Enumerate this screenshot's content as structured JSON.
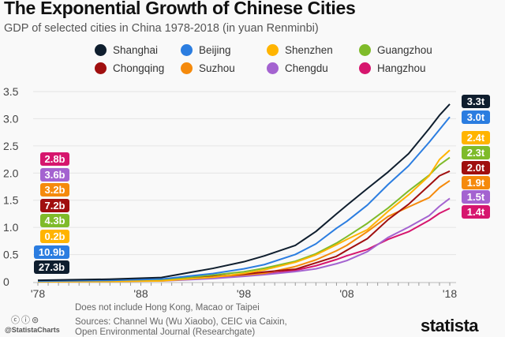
{
  "title": "The Exponential Growth of Chinese Cities",
  "subtitle": "GDP of selected cities in China 1978-2018 (in yuan Renminbi)",
  "notes": {
    "exclusion": "Does not include Hong Kong, Macao or Taipei",
    "sources_line1": "Sources: Channel Wu (Wu Xiaobo), CEIC via Caixin,",
    "sources_line2": "Open Environmental Journal (Researchgate)",
    "handle": "@StatistaCharts",
    "license_icons": "cc-by-nd-icons",
    "brand": "statista"
  },
  "chart_data": {
    "type": "line",
    "title": "The Exponential Growth of Chinese Cities",
    "subtitle": "GDP of selected cities in China 1978-2018 (in yuan Renminbi)",
    "xlabel": "",
    "ylabel": "",
    "xlim": [
      1978,
      2018
    ],
    "ylim": [
      0,
      3.5
    ],
    "yticks": [
      "0",
      "0.5",
      "1.0",
      "1.5",
      "2.0",
      "2.5",
      "3.0",
      "3.5"
    ],
    "xticks": [
      "'78",
      "'88",
      "'98",
      "'08",
      "'18"
    ],
    "grid": true,
    "legend": "top",
    "x": [
      1978,
      1985,
      1990,
      1995,
      1998,
      2000,
      2003,
      2005,
      2007,
      2008,
      2010,
      2012,
      2014,
      2016,
      2017,
      2018
    ],
    "series": [
      {
        "name": "Shanghai",
        "color": "#0f1e2e",
        "start_label": "27.3b",
        "end_label": "3.3t",
        "values": [
          0.027,
          0.047,
          0.078,
          0.246,
          0.368,
          0.477,
          0.669,
          0.925,
          1.249,
          1.407,
          1.716,
          2.018,
          2.357,
          2.818,
          3.063,
          3.268
        ]
      },
      {
        "name": "Beijing",
        "color": "#2b7de0",
        "start_label": "10.9b",
        "end_label": "3.0t",
        "values": [
          0.011,
          0.026,
          0.05,
          0.151,
          0.238,
          0.316,
          0.502,
          0.697,
          0.985,
          1.112,
          1.411,
          1.788,
          2.133,
          2.567,
          2.8,
          3.032
        ]
      },
      {
        "name": "Shenzhen",
        "color": "#ffb400",
        "start_label": "0.2b",
        "end_label": "2.4t",
        "values": [
          0.0002,
          0.0039,
          0.0172,
          0.0842,
          0.1535,
          0.2187,
          0.3586,
          0.4951,
          0.6802,
          0.7787,
          0.9582,
          1.295,
          1.6,
          1.949,
          2.249,
          2.422
        ]
      },
      {
        "name": "Guangzhou",
        "color": "#7fbb2a",
        "start_label": "4.3b",
        "end_label": "2.3t",
        "values": [
          0.0043,
          0.0124,
          0.0319,
          0.124,
          0.184,
          0.249,
          0.376,
          0.515,
          0.711,
          0.829,
          1.075,
          1.355,
          1.671,
          1.961,
          2.15,
          2.286
        ]
      },
      {
        "name": "Chongqing",
        "color": "#a00f0f",
        "start_label": "7.2b",
        "end_label": "2.0t",
        "values": [
          0.0072,
          0.016,
          0.033,
          0.1,
          0.14,
          0.179,
          0.23,
          0.347,
          0.468,
          0.579,
          0.793,
          1.141,
          1.426,
          1.774,
          1.95,
          2.036
        ]
      },
      {
        "name": "Suzhou",
        "color": "#f58a0c",
        "start_label": "3.2b",
        "end_label": "1.9t",
        "values": [
          0.0032,
          0.01,
          0.02,
          0.09,
          0.127,
          0.154,
          0.28,
          0.403,
          0.57,
          0.67,
          0.923,
          1.201,
          1.376,
          1.548,
          1.732,
          1.86
        ]
      },
      {
        "name": "Chengdu",
        "color": "#a463d0",
        "start_label": "3.6b",
        "end_label": "1.5t",
        "values": [
          0.0036,
          0.01,
          0.015,
          0.06,
          0.1,
          0.131,
          0.187,
          0.238,
          0.332,
          0.39,
          0.555,
          0.814,
          1.006,
          1.217,
          1.389,
          1.534
        ]
      },
      {
        "name": "Hangzhou",
        "color": "#d6166e",
        "start_label": "2.8b",
        "end_label": "1.4t",
        "values": [
          0.0028,
          0.009,
          0.019,
          0.076,
          0.112,
          0.138,
          0.21,
          0.294,
          0.41,
          0.478,
          0.595,
          0.78,
          0.921,
          1.131,
          1.26,
          1.351
        ]
      }
    ]
  }
}
